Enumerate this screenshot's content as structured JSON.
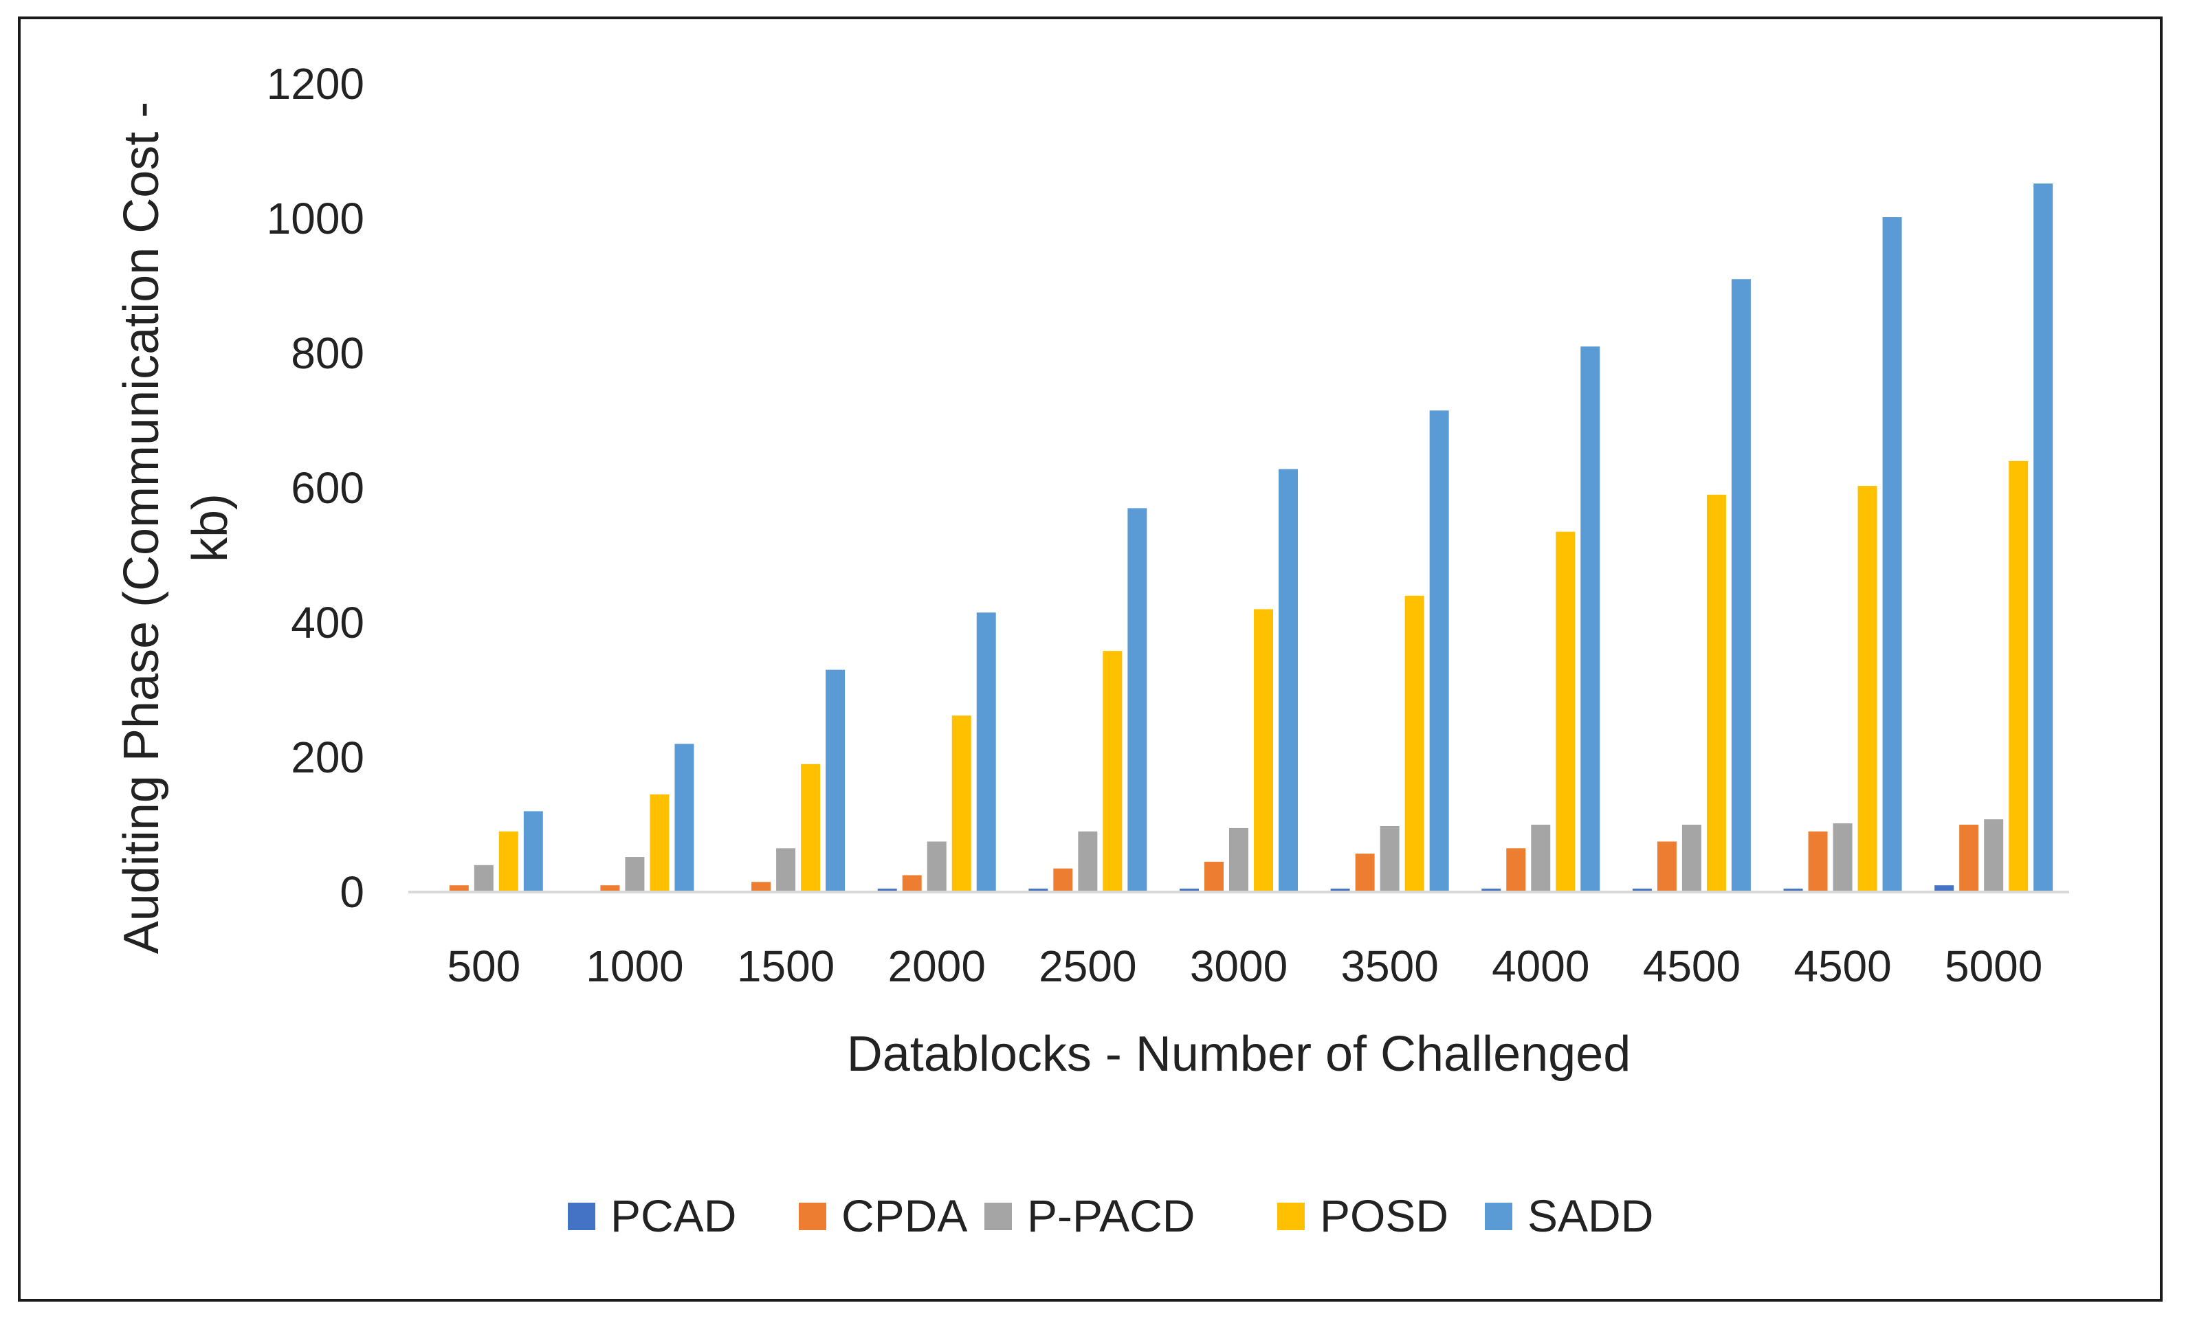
{
  "chart_data": {
    "type": "bar",
    "title": "",
    "xlabel": "Datablocks - Number of Challenged",
    "ylabel": "Auditing Phase (Communication Cost - kb)",
    "ylabel_lines": [
      "Auditing Phase (Communication Cost -",
      "kb)"
    ],
    "ylim": [
      0,
      1200
    ],
    "yticks": [
      0,
      200,
      400,
      600,
      800,
      1000,
      1200
    ],
    "grid": false,
    "legend_position": "bottom",
    "categories": [
      "500",
      "1000",
      "1500",
      "2000",
      "2500",
      "3000",
      "3500",
      "4000",
      "4500",
      "4500",
      "5000"
    ],
    "series": [
      {
        "name": "PCAD",
        "color": "#4472C4",
        "values": [
          2,
          2,
          2,
          5,
          5,
          5,
          5,
          5,
          5,
          5,
          10
        ]
      },
      {
        "name": "CPDA",
        "color": "#ED7D31",
        "values": [
          10,
          10,
          15,
          25,
          35,
          45,
          57,
          65,
          75,
          90,
          100
        ]
      },
      {
        "name": "P-PACD",
        "color": "#A5A5A5",
        "values": [
          40,
          52,
          65,
          75,
          90,
          95,
          98,
          100,
          100,
          102,
          108
        ]
      },
      {
        "name": "POSD",
        "color": "#FFC000",
        "values": [
          90,
          145,
          190,
          262,
          358,
          420,
          440,
          535,
          590,
          603,
          640
        ]
      },
      {
        "name": "SADD",
        "color": "#5B9BD5",
        "values": [
          120,
          220,
          330,
          415,
          570,
          628,
          715,
          810,
          910,
          1002,
          1052
        ]
      }
    ]
  }
}
